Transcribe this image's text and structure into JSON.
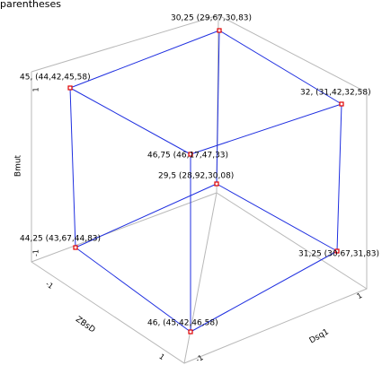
{
  "title": "parentheses",
  "axes": {
    "vertical": {
      "label": "Bmut",
      "ticks": [
        "1",
        "-1"
      ]
    },
    "left": {
      "label": "ZBsD",
      "ticks": [
        "-1",
        "1"
      ]
    },
    "right": {
      "label": "Dsq1",
      "ticks": [
        "-1",
        "1"
      ]
    }
  },
  "nodes": [
    {
      "label": "30,25 (29,67,30,83)"
    },
    {
      "label": "45, (44,42,45,58)"
    },
    {
      "label": "32, (31,42,32,58)"
    },
    {
      "label": "46,75 (46,17,47,33)"
    },
    {
      "label": "29,5 (28,92,30,08)"
    },
    {
      "label": "44,25 (43,67,44,83)"
    },
    {
      "label": "31,25 (30,67,31,83)"
    },
    {
      "label": "46, (45,42,46,58)"
    }
  ]
}
